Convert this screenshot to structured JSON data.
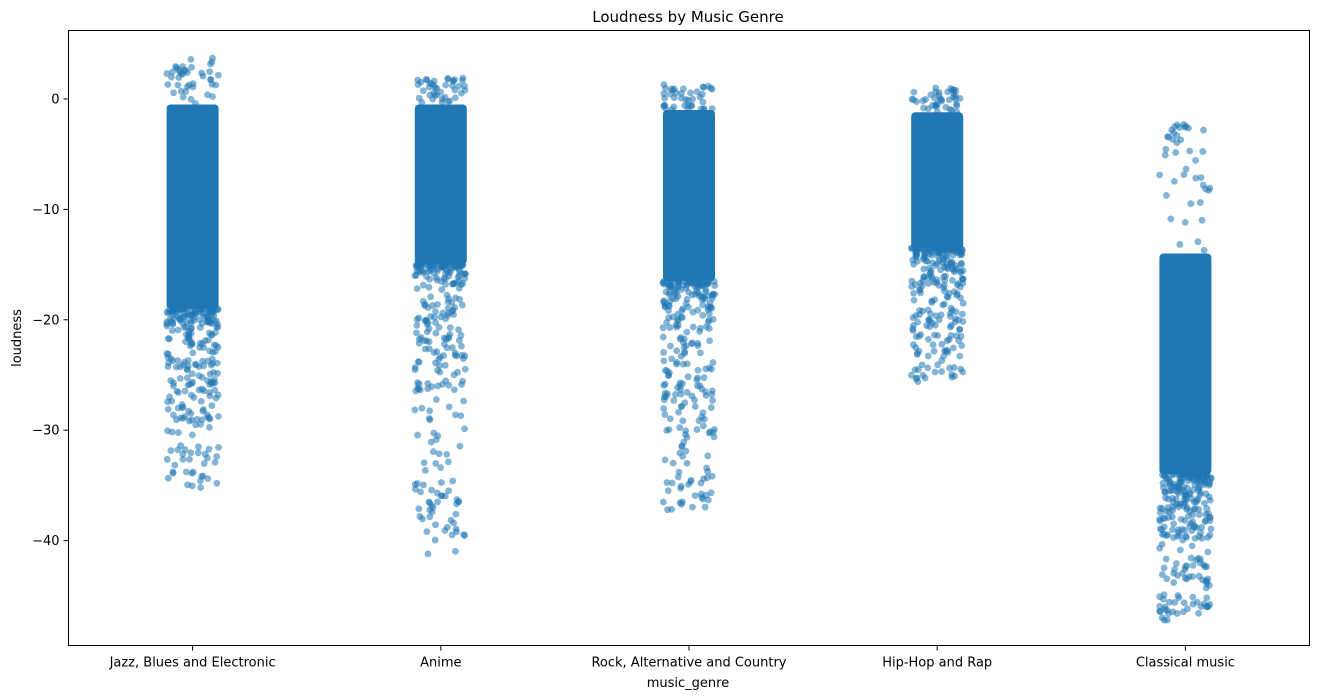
{
  "chart_data": {
    "type": "scatter",
    "title": "Loudness by Music Genre",
    "xlabel": "music_genre",
    "ylabel": "loudness",
    "categories": [
      "Jazz, Blues and Electronic",
      "Anime",
      "Rock, Alternative and Country",
      "Hip-Hop and Rap",
      "Classical music"
    ],
    "yticks": [
      0,
      -10,
      -20,
      -30,
      -40
    ],
    "ylim": [
      -49.5,
      6.2
    ],
    "grid": false,
    "marker_color": "#1f77b4",
    "marker_alpha": 0.55,
    "distributions": [
      {
        "name": "Jazz, Blues and Electronic",
        "max": 3.7,
        "min": -35.2,
        "dense_upper": -0.5,
        "dense_lower": -19.0
      },
      {
        "name": "Anime",
        "max": 1.9,
        "min": -41.2,
        "dense_upper": -0.5,
        "dense_lower": -15.0
      },
      {
        "name": "Rock, Alternative and Country",
        "max": 1.3,
        "min": -37.2,
        "dense_upper": -1.0,
        "dense_lower": -16.5
      },
      {
        "name": "Hip-Hop and Rap",
        "max": 1.0,
        "min": -25.6,
        "dense_upper": -1.2,
        "dense_lower": -13.5
      },
      {
        "name": "Classical music",
        "max": -2.3,
        "min": -47.2,
        "dense_upper": -14.0,
        "dense_lower": -34.0
      }
    ]
  }
}
